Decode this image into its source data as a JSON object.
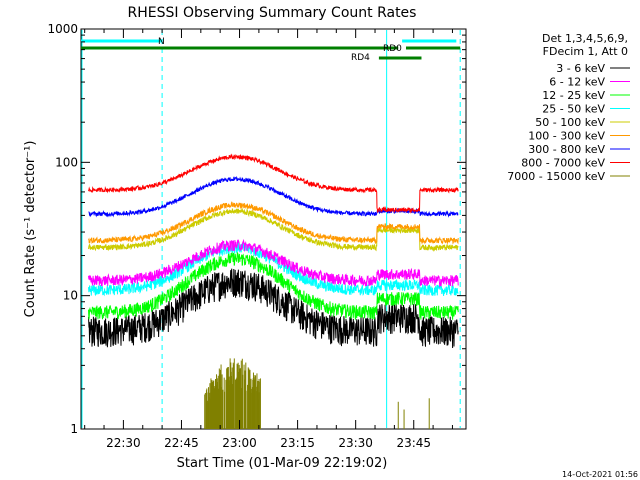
{
  "chart_data": {
    "type": "line",
    "title": "RHESSI Observing Summary Count Rates",
    "xlabel": "Start Time (01-Mar-09 22:19:02)",
    "ylabel": "Count Rate (s⁻¹ detector⁻¹)",
    "yscale": "log",
    "ylim": [
      1,
      1000
    ],
    "xlim_minutes": [
      22.316,
      23.977
    ],
    "x_ticks": [
      "22:30",
      "22:45",
      "23:00",
      "23:15",
      "23:30",
      "23:45"
    ],
    "y_ticks": [
      "1",
      "10",
      "100",
      "1000"
    ],
    "header_lines": [
      "Det 1,3,4,5,6,9,",
      "FDecim 1, Att 0"
    ],
    "timestamp": "14-Oct-2021 01:56",
    "flags": [
      {
        "label": "N",
        "color": "#00ffff",
        "segments": [
          [
            "22:19",
            "22:40"
          ],
          [
            "23:42",
            "23:56"
          ]
        ]
      },
      {
        "label": "RD0",
        "color": "#007f00",
        "segments": [
          [
            "22:19",
            "23:41"
          ],
          [
            "23:43",
            "23:57"
          ]
        ]
      },
      {
        "label": "RD4",
        "color": "#007f00",
        "segments": [
          [
            "23:36",
            "23:47"
          ]
        ]
      }
    ],
    "vlines": [
      {
        "time": "22:19",
        "style": "solid",
        "color": "#00ffff"
      },
      {
        "time": "22:40",
        "style": "dashed",
        "color": "#00ffff"
      },
      {
        "time": "23:38",
        "style": "solid",
        "color": "#00ffff"
      },
      {
        "time": "23:57",
        "style": "dashed",
        "color": "#00ffff"
      }
    ],
    "series": [
      {
        "name": "3 - 6 keV",
        "color": "#000000",
        "base": 5.5,
        "peak": 13,
        "dip_level": 7,
        "noise": 0.22
      },
      {
        "name": "6 - 12 keV",
        "color": "#ff00ff",
        "base": 13,
        "peak": 24,
        "dip_level": 14.5,
        "noise": 0.08
      },
      {
        "name": "12 - 25 keV",
        "color": "#00ff00",
        "base": 7.5,
        "peak": 19,
        "dip_level": 9.5,
        "noise": 0.1
      },
      {
        "name": "25 - 50 keV",
        "color": "#00ffff",
        "base": 11,
        "peak": 23,
        "dip_level": 12,
        "noise": 0.08
      },
      {
        "name": "50 - 100 keV",
        "color": "#cccc00",
        "base": 23,
        "peak": 43,
        "dip_level": 31,
        "noise": 0.04
      },
      {
        "name": "100 - 300 keV",
        "color": "#ff9900",
        "base": 26,
        "peak": 48,
        "dip_level": 33,
        "noise": 0.04
      },
      {
        "name": "300 - 800 keV",
        "color": "#0000ff",
        "base": 41,
        "peak": 75,
        "dip_level": 43,
        "noise": 0.03
      },
      {
        "name": "800 - 7000 keV",
        "color": "#ff0000",
        "base": 62,
        "peak": 110,
        "dip_level": 44,
        "noise": 0.03
      },
      {
        "name": "7000 - 15000 keV",
        "color": "#808000",
        "base": 1,
        "peak": 3.5,
        "dip_level": 1,
        "noise": 0.0
      }
    ]
  }
}
